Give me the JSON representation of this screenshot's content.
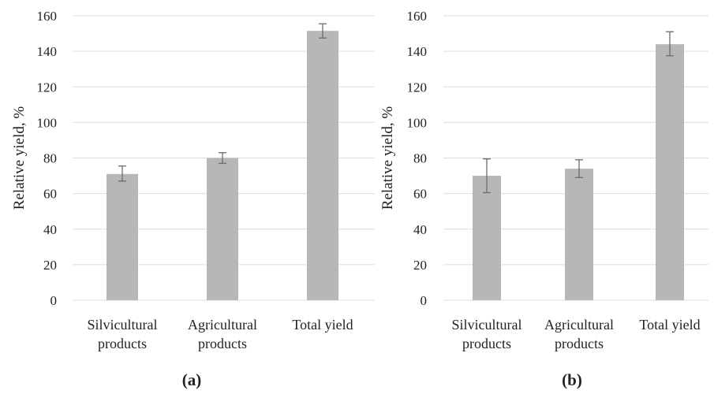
{
  "colors": {
    "bar": "#b7b7b7",
    "grid": "#dcdcdc",
    "error_bar": "#6b6b6b"
  },
  "chart_data": [
    {
      "type": "bar",
      "panel_label": "(a)",
      "categories": [
        "Silvicultural products",
        "Agricultural products",
        "Total yield"
      ],
      "category_lines": [
        [
          "Silvicultural",
          "products"
        ],
        [
          "Agricultural",
          "products"
        ],
        [
          "Total yield"
        ]
      ],
      "values": [
        71,
        80,
        151.5
      ],
      "error_low": [
        67,
        77,
        147.5
      ],
      "error_high": [
        75.5,
        83,
        155.5
      ],
      "xlabel": "",
      "ylabel": "Relative yield, %",
      "ylim": [
        0,
        160
      ],
      "yticks": [
        0,
        20,
        40,
        60,
        80,
        100,
        120,
        140,
        160
      ],
      "grid": true
    },
    {
      "type": "bar",
      "panel_label": "(b)",
      "categories": [
        "Silvicultural products",
        "Agricultural products",
        "Total yield"
      ],
      "category_lines": [
        [
          "Silvicultural",
          "products"
        ],
        [
          "Agricultural",
          "products"
        ],
        [
          "Total yield"
        ]
      ],
      "values": [
        70,
        74,
        144
      ],
      "error_low": [
        60.5,
        69,
        137.5
      ],
      "error_high": [
        79.5,
        79,
        151
      ],
      "xlabel": "",
      "ylabel": "Relative yield, %",
      "ylim": [
        0,
        160
      ],
      "yticks": [
        0,
        20,
        40,
        60,
        80,
        100,
        120,
        140,
        160
      ],
      "grid": true
    }
  ]
}
